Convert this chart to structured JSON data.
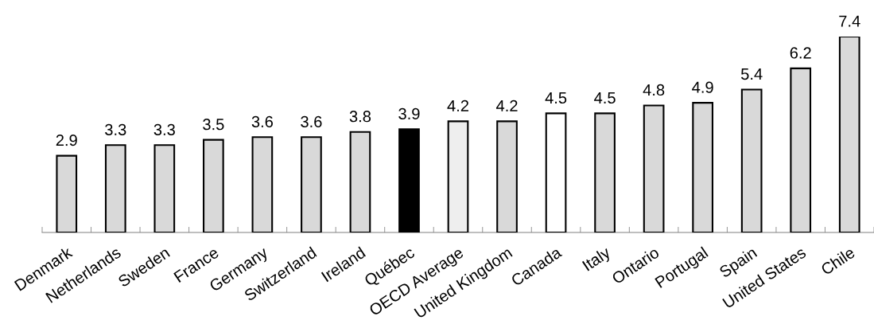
{
  "chart_data": {
    "type": "bar",
    "categories": [
      "Denmark",
      "Netherlands",
      "Sweden",
      "France",
      "Germany",
      "Switzerland",
      "Ireland",
      "Québec",
      "OECD Average",
      "United Kingdom",
      "Canada",
      "Italy",
      "Ontario",
      "Portugal",
      "Spain",
      "United States",
      "Chile"
    ],
    "values": [
      2.9,
      3.3,
      3.3,
      3.5,
      3.6,
      3.6,
      3.8,
      3.9,
      4.2,
      4.2,
      4.5,
      4.5,
      4.8,
      4.9,
      5.4,
      6.2,
      7.4
    ],
    "colors": [
      "#d9d9d9",
      "#d9d9d9",
      "#d9d9d9",
      "#d9d9d9",
      "#d9d9d9",
      "#d9d9d9",
      "#d9d9d9",
      "#000000",
      "#eeeeee",
      "#d9d9d9",
      "#ffffff",
      "#d9d9d9",
      "#d9d9d9",
      "#d9d9d9",
      "#d9d9d9",
      "#d9d9d9",
      "#d9d9d9"
    ],
    "data_labels": true,
    "tick_labels": "x"
  }
}
